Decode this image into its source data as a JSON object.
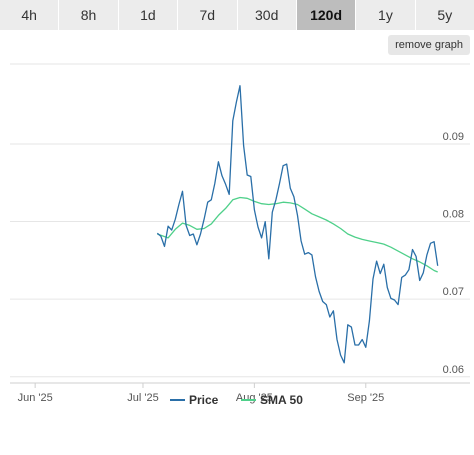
{
  "tabs": [
    {
      "label": "4h",
      "active": false
    },
    {
      "label": "8h",
      "active": false
    },
    {
      "label": "1d",
      "active": false
    },
    {
      "label": "7d",
      "active": false
    },
    {
      "label": "30d",
      "active": false
    },
    {
      "label": "120d",
      "active": true
    },
    {
      "label": "1y",
      "active": false
    },
    {
      "label": "5y",
      "active": false
    }
  ],
  "remove_button": {
    "label": "remove graph"
  },
  "colors": {
    "price": "#2a6fa8",
    "sma": "#4fd08a",
    "grid": "#e6e6e6"
  },
  "chart_data": {
    "type": "line",
    "title": "",
    "xlabel": "",
    "ylabel": "",
    "x_ticks": [
      "Jun '25",
      "Jul '25",
      "Aug '25",
      "Sep '25"
    ],
    "x_range": [
      "2025-05-25",
      "2025-09-30"
    ],
    "y_ticks": [
      0.06,
      0.07,
      0.08,
      0.09
    ],
    "ylim": [
      0.0592,
      0.1003
    ],
    "grid": true,
    "legend_position": "bottom",
    "series": [
      {
        "name": "Price",
        "points": [
          [
            "2025-07-05",
            0.0785
          ],
          [
            "2025-07-06",
            0.0781
          ],
          [
            "2025-07-07",
            0.0768
          ],
          [
            "2025-07-08",
            0.0794
          ],
          [
            "2025-07-09",
            0.0789
          ],
          [
            "2025-07-10",
            0.0803
          ],
          [
            "2025-07-11",
            0.0822
          ],
          [
            "2025-07-12",
            0.0839
          ],
          [
            "2025-07-13",
            0.0795
          ],
          [
            "2025-07-14",
            0.0782
          ],
          [
            "2025-07-15",
            0.0784
          ],
          [
            "2025-07-16",
            0.077
          ],
          [
            "2025-07-17",
            0.0784
          ],
          [
            "2025-07-18",
            0.0803
          ],
          [
            "2025-07-19",
            0.0825
          ],
          [
            "2025-07-20",
            0.0828
          ],
          [
            "2025-07-21",
            0.0849
          ],
          [
            "2025-07-22",
            0.0877
          ],
          [
            "2025-07-23",
            0.0859
          ],
          [
            "2025-07-24",
            0.0848
          ],
          [
            "2025-07-25",
            0.0835
          ],
          [
            "2025-07-26",
            0.093
          ],
          [
            "2025-07-27",
            0.0954
          ],
          [
            "2025-07-28",
            0.0975
          ],
          [
            "2025-07-29",
            0.0898
          ],
          [
            "2025-07-30",
            0.086
          ],
          [
            "2025-07-31",
            0.0858
          ],
          [
            "2025-08-01",
            0.0815
          ],
          [
            "2025-08-02",
            0.0793
          ],
          [
            "2025-08-03",
            0.0779
          ],
          [
            "2025-08-04",
            0.08
          ],
          [
            "2025-08-05",
            0.0752
          ],
          [
            "2025-08-06",
            0.0812
          ],
          [
            "2025-08-07",
            0.0828
          ],
          [
            "2025-08-08",
            0.0849
          ],
          [
            "2025-08-09",
            0.0872
          ],
          [
            "2025-08-10",
            0.0874
          ],
          [
            "2025-08-11",
            0.0843
          ],
          [
            "2025-08-12",
            0.0832
          ],
          [
            "2025-08-13",
            0.0808
          ],
          [
            "2025-08-14",
            0.0775
          ],
          [
            "2025-08-15",
            0.0758
          ],
          [
            "2025-08-16",
            0.076
          ],
          [
            "2025-08-17",
            0.0757
          ],
          [
            "2025-08-18",
            0.0729
          ],
          [
            "2025-08-19",
            0.071
          ],
          [
            "2025-08-20",
            0.0697
          ],
          [
            "2025-08-21",
            0.0693
          ],
          [
            "2025-08-22",
            0.0677
          ],
          [
            "2025-08-23",
            0.0685
          ],
          [
            "2025-08-24",
            0.0648
          ],
          [
            "2025-08-25",
            0.0628
          ],
          [
            "2025-08-26",
            0.0618
          ],
          [
            "2025-08-27",
            0.0667
          ],
          [
            "2025-08-28",
            0.0664
          ],
          [
            "2025-08-29",
            0.0641
          ],
          [
            "2025-08-30",
            0.0641
          ],
          [
            "2025-08-31",
            0.0648
          ],
          [
            "2025-09-01",
            0.0638
          ],
          [
            "2025-09-02",
            0.0672
          ],
          [
            "2025-09-03",
            0.0726
          ],
          [
            "2025-09-04",
            0.0749
          ],
          [
            "2025-09-05",
            0.0733
          ],
          [
            "2025-09-06",
            0.0745
          ],
          [
            "2025-09-07",
            0.0715
          ],
          [
            "2025-09-08",
            0.0701
          ],
          [
            "2025-09-09",
            0.0699
          ],
          [
            "2025-09-10",
            0.0693
          ],
          [
            "2025-09-11",
            0.0728
          ],
          [
            "2025-09-12",
            0.0731
          ],
          [
            "2025-09-13",
            0.0738
          ],
          [
            "2025-09-14",
            0.0764
          ],
          [
            "2025-09-15",
            0.0755
          ],
          [
            "2025-09-16",
            0.0724
          ],
          [
            "2025-09-17",
            0.0734
          ],
          [
            "2025-09-18",
            0.0757
          ],
          [
            "2025-09-19",
            0.0772
          ],
          [
            "2025-09-20",
            0.0774
          ],
          [
            "2025-09-21",
            0.0743
          ]
        ]
      },
      {
        "name": "SMA 50",
        "points": [
          [
            "2025-07-05",
            0.0784
          ],
          [
            "2025-07-08",
            0.0779
          ],
          [
            "2025-07-10",
            0.079
          ],
          [
            "2025-07-12",
            0.0798
          ],
          [
            "2025-07-14",
            0.0795
          ],
          [
            "2025-07-16",
            0.079
          ],
          [
            "2025-07-18",
            0.0791
          ],
          [
            "2025-07-20",
            0.0797
          ],
          [
            "2025-07-22",
            0.0808
          ],
          [
            "2025-07-24",
            0.0817
          ],
          [
            "2025-07-26",
            0.0828
          ],
          [
            "2025-07-28",
            0.0831
          ],
          [
            "2025-07-30",
            0.083
          ],
          [
            "2025-08-01",
            0.0826
          ],
          [
            "2025-08-03",
            0.0823
          ],
          [
            "2025-08-05",
            0.0822
          ],
          [
            "2025-08-07",
            0.0823
          ],
          [
            "2025-08-09",
            0.0825
          ],
          [
            "2025-08-11",
            0.0824
          ],
          [
            "2025-08-13",
            0.0822
          ],
          [
            "2025-08-15",
            0.0816
          ],
          [
            "2025-08-17",
            0.081
          ],
          [
            "2025-08-19",
            0.0806
          ],
          [
            "2025-08-21",
            0.0802
          ],
          [
            "2025-08-23",
            0.0797
          ],
          [
            "2025-08-25",
            0.0791
          ],
          [
            "2025-08-27",
            0.0784
          ],
          [
            "2025-08-29",
            0.078
          ],
          [
            "2025-08-31",
            0.0777
          ],
          [
            "2025-09-02",
            0.0775
          ],
          [
            "2025-09-04",
            0.0773
          ],
          [
            "2025-09-06",
            0.0771
          ],
          [
            "2025-09-08",
            0.0767
          ],
          [
            "2025-09-10",
            0.0762
          ],
          [
            "2025-09-12",
            0.0757
          ],
          [
            "2025-09-14",
            0.0752
          ],
          [
            "2025-09-16",
            0.0748
          ],
          [
            "2025-09-18",
            0.0743
          ],
          [
            "2025-09-20",
            0.0737
          ],
          [
            "2025-09-21",
            0.0735
          ]
        ]
      }
    ]
  }
}
